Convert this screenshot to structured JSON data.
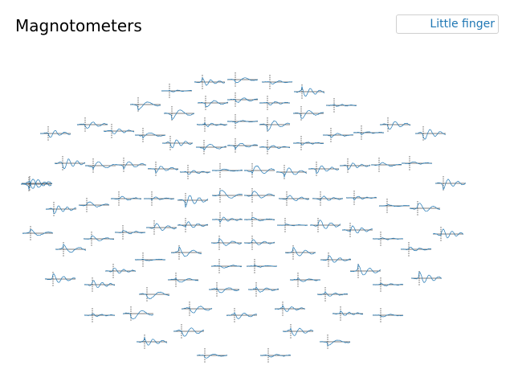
{
  "chart_data": {
    "type": "line",
    "title": "Magnotometers",
    "legend": {
      "placement": "top-right",
      "entries": [
        "Little finger"
      ]
    },
    "colors": {
      "trace": "#1f77b4",
      "axis": "#000000",
      "marker": "#000000"
    },
    "n_sensors": 102,
    "grid": false
  }
}
